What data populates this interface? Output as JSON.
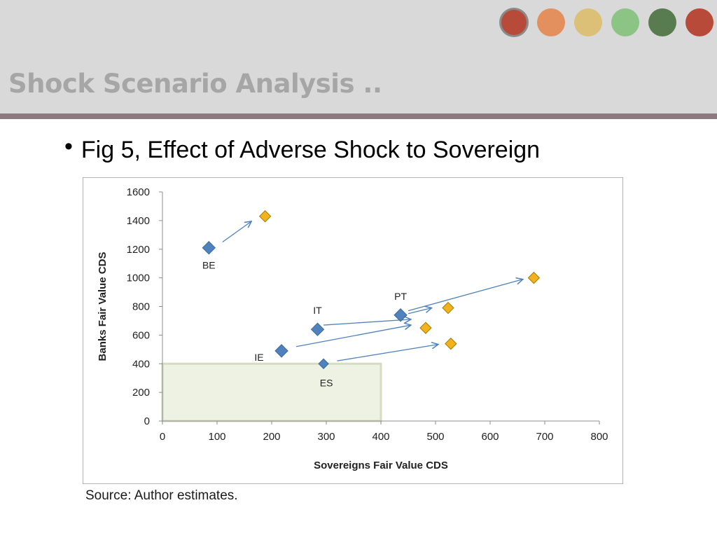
{
  "slide": {
    "title": "Shock Scenario Analysis ..",
    "bullet": "Fig 5, Effect of Adverse Shock to Sovereign",
    "source": "Source: Author estimates."
  },
  "theme_dots": [
    {
      "name": "red-dot",
      "color": "#b84a3a",
      "ringed": true
    },
    {
      "name": "orange-dot",
      "color": "#e3905e"
    },
    {
      "name": "sand-dot",
      "color": "#dcc078"
    },
    {
      "name": "light-green-dot",
      "color": "#8cc485"
    },
    {
      "name": "dark-green-dot",
      "color": "#587c50"
    },
    {
      "name": "brick-dot",
      "color": "#b84a3a"
    }
  ],
  "chart_data": {
    "type": "scatter",
    "xlabel": "Sovereigns Fair Value CDS",
    "ylabel": "Banks Fair Value CDS",
    "xlim": [
      0,
      800
    ],
    "ylim": [
      0,
      1600
    ],
    "xticks": [
      0,
      100,
      200,
      300,
      400,
      500,
      600,
      700,
      800
    ],
    "yticks": [
      0,
      200,
      400,
      600,
      800,
      1000,
      1200,
      1400,
      1600
    ],
    "grid": false,
    "legend": "none",
    "colors": {
      "before": "#4f81bd",
      "after": "#f2b21b",
      "arrow": "#4f81bd",
      "shaded_region": "#eef2e2"
    },
    "shaded_region": {
      "x": [
        0,
        400
      ],
      "y": [
        0,
        400
      ]
    },
    "points": [
      {
        "label": "BE",
        "before": [
          85,
          1210
        ],
        "after": [
          188,
          1430
        ]
      },
      {
        "label": "IT",
        "before": [
          284,
          640
        ],
        "after": [
          482,
          650
        ]
      },
      {
        "label": "PT",
        "before": [
          436,
          740
        ],
        "after": [
          523,
          790
        ]
      },
      {
        "label": "IE",
        "before": [
          218,
          490
        ],
        "after": [
          523,
          790
        ]
      },
      {
        "label": "ES",
        "before": [
          295,
          400
        ],
        "after": [
          528,
          540
        ]
      }
    ],
    "arrows": [
      {
        "from": [
          110,
          1250
        ],
        "to": [
          163,
          1395
        ]
      },
      {
        "from": [
          295,
          670
        ],
        "to": [
          455,
          710
        ]
      },
      {
        "from": [
          450,
          750
        ],
        "to": [
          493,
          790
        ]
      },
      {
        "from": [
          450,
          770
        ],
        "to": [
          660,
          990
        ]
      },
      {
        "from": [
          245,
          520
        ],
        "to": [
          455,
          670
        ]
      },
      {
        "from": [
          320,
          420
        ],
        "to": [
          505,
          535
        ]
      }
    ],
    "extra_after": [
      [
        680,
        1000
      ]
    ]
  }
}
